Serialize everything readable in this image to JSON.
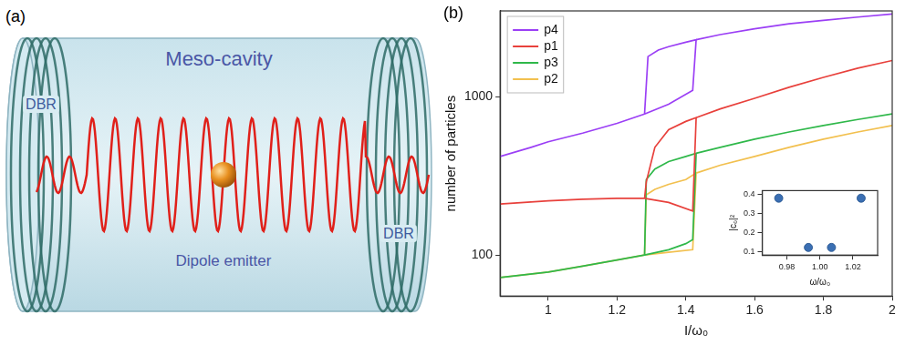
{
  "diagram": {
    "label": "(a)",
    "title": "Meso-cavity",
    "mirrors": [
      "DBR",
      "DBR"
    ],
    "emitter": "Dipole emitter"
  },
  "chart_data": [
    {
      "type": "line",
      "title": "(b)",
      "x_label": "I/ω₀",
      "y_label": "number of particles",
      "xlim": [
        0.86,
        2
      ],
      "xticks": [
        1,
        1.2,
        1.4,
        1.6,
        1.8,
        2
      ],
      "ylim": [
        55,
        3500
      ],
      "yticks": [
        100,
        1000
      ],
      "log": "y",
      "grid": false,
      "legend": "upper left",
      "series": [
        {
          "name": "p4",
          "color": "#9b3ff5",
          "x": [
            0.86,
            0.95,
            1.0,
            1.1,
            1.2,
            1.28,
            1.35,
            1.42,
            1.43,
            1.4,
            1.35,
            1.32,
            1.29,
            1.28,
            null,
            1.43,
            1.5,
            1.6,
            1.7,
            1.8,
            1.9,
            2.0
          ],
          "values": [
            420,
            480,
            520,
            590,
            680,
            780,
            900,
            1100,
            2300,
            2220,
            2080,
            1980,
            1800,
            780,
            null,
            2300,
            2480,
            2700,
            2900,
            3050,
            3200,
            3350
          ]
        },
        {
          "name": "p1",
          "color": "#e8413c",
          "x": [
            0.86,
            1.0,
            1.1,
            1.2,
            1.28,
            1.35,
            1.42,
            1.43,
            1.4,
            1.35,
            1.31,
            1.285,
            1.28,
            null,
            1.43,
            1.5,
            1.6,
            1.7,
            1.8,
            1.9,
            2.0
          ],
          "values": [
            210,
            220,
            225,
            228,
            228,
            215,
            190,
            740,
            700,
            620,
            480,
            290,
            228,
            null,
            740,
            840,
            980,
            1150,
            1330,
            1520,
            1700
          ]
        },
        {
          "name": "p3",
          "color": "#2fb84a",
          "x": [
            0.86,
            1.0,
            1.1,
            1.2,
            1.28,
            1.35,
            1.4,
            1.42,
            1.43,
            1.4,
            1.35,
            1.31,
            1.285,
            1.28,
            null,
            1.43,
            1.5,
            1.6,
            1.7,
            1.8,
            1.9,
            2.0
          ],
          "values": [
            72,
            78,
            85,
            93,
            100,
            108,
            118,
            125,
            440,
            420,
            390,
            350,
            300,
            100,
            null,
            440,
            480,
            540,
            600,
            660,
            720,
            780
          ]
        },
        {
          "name": "p2",
          "color": "#f2c04f",
          "x": [
            0.86,
            1.0,
            1.1,
            1.2,
            1.28,
            1.35,
            1.42,
            1.43,
            1.4,
            1.35,
            1.31,
            1.285,
            1.28,
            null,
            1.43,
            1.5,
            1.6,
            1.7,
            1.8,
            1.9,
            2.0
          ],
          "values": [
            72,
            78,
            85,
            93,
            100,
            104,
            108,
            330,
            300,
            280,
            260,
            240,
            100,
            null,
            330,
            370,
            420,
            480,
            540,
            600,
            660
          ]
        }
      ]
    },
    {
      "type": "scatter",
      "x_label": "ω/ω₀",
      "y_label": "|c₀|²",
      "x": [
        0.975,
        0.993,
        1.007,
        1.025
      ],
      "values": [
        0.38,
        0.12,
        0.12,
        0.38
      ],
      "color": "#3b6fb3",
      "marker": "circle",
      "xlim": [
        0.965,
        1.035
      ],
      "xticks": [
        0.98,
        {
          "value": 1,
          "label": "1.00"
        },
        1.02
      ],
      "ylim": [
        0.08,
        0.42
      ],
      "yticks": [
        0.1,
        0.2,
        0.3,
        0.4
      ],
      "grid": false
    }
  ]
}
